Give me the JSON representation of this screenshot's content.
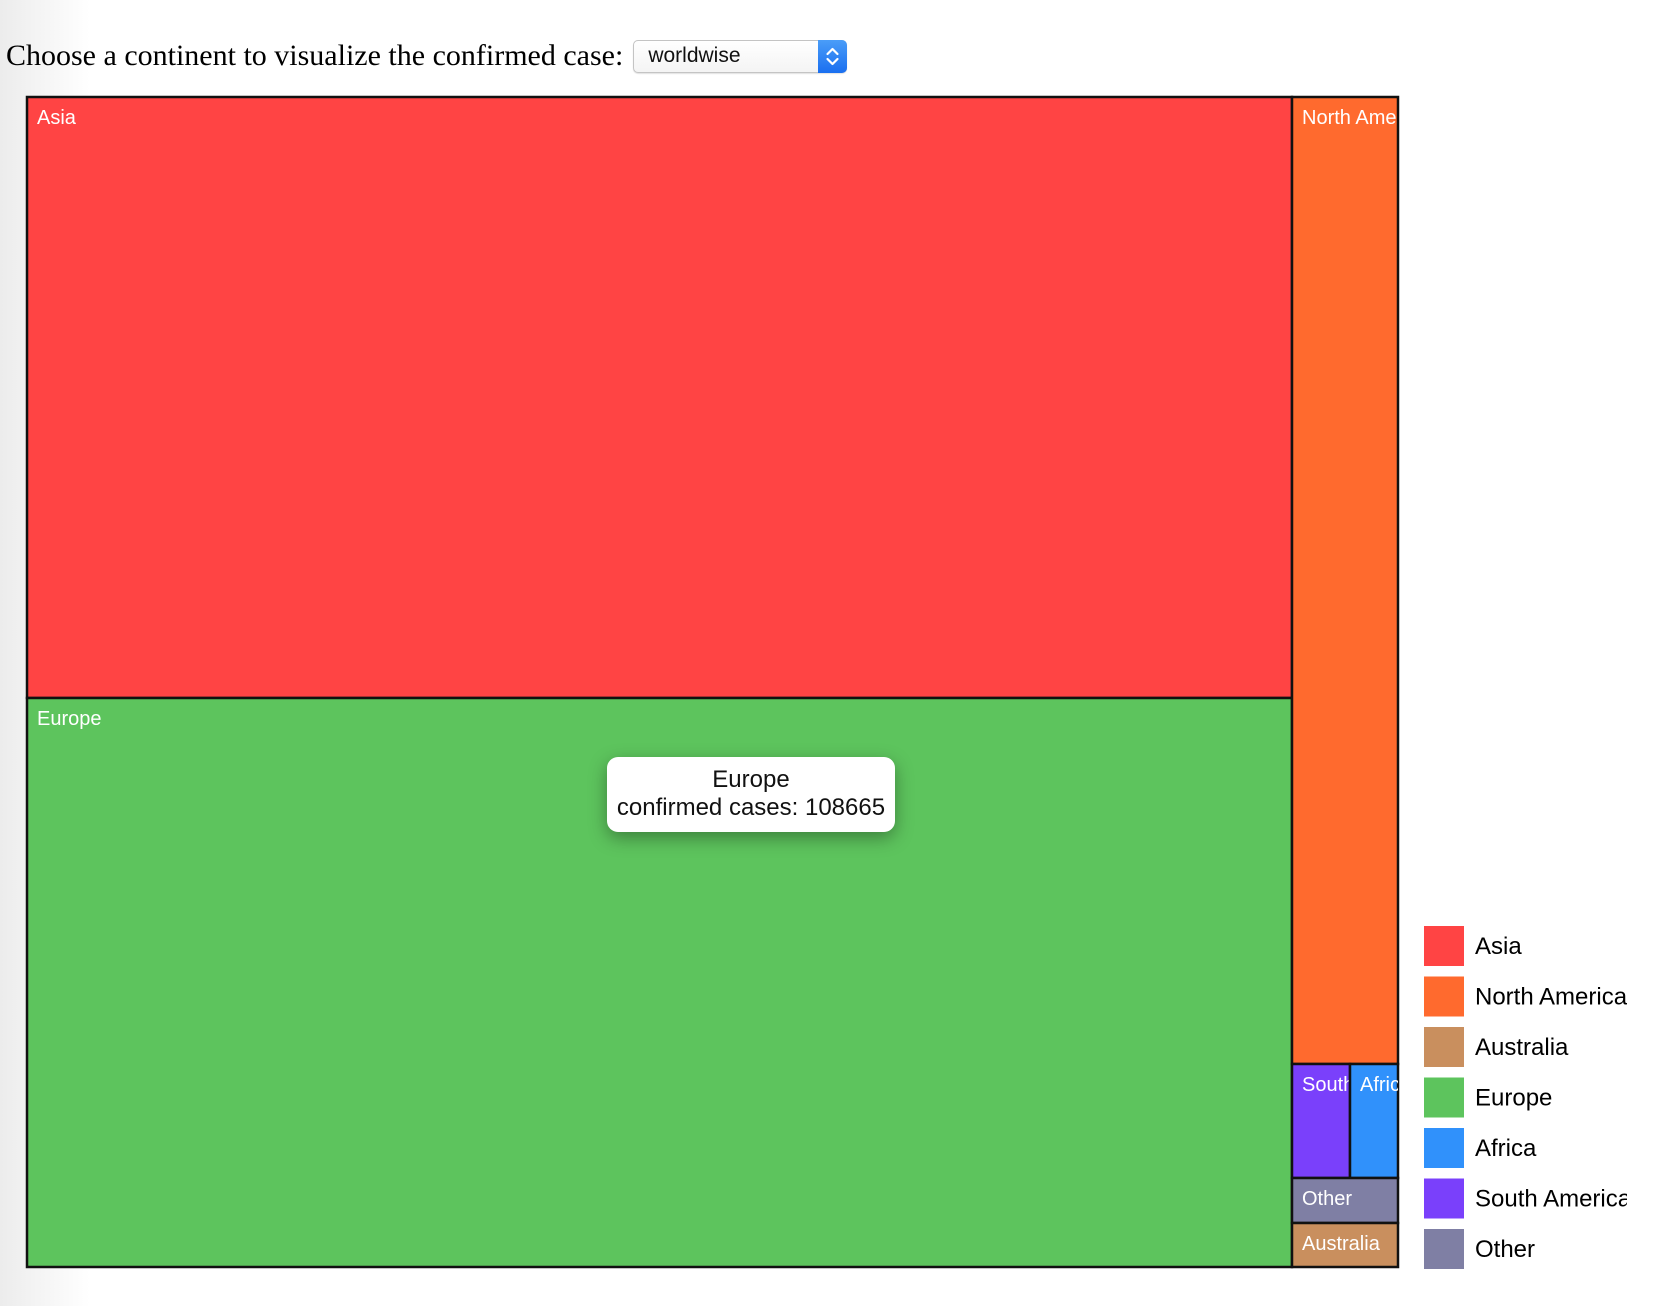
{
  "controls": {
    "prompt": "Choose a continent to visualize the confirmed case:",
    "select": {
      "value": "worldwise",
      "arrows_icon": "up-down-chevron-icon",
      "accent_color": "#2f86f6"
    }
  },
  "chart_data": {
    "type": "treemap",
    "title": "",
    "layout": "squarified",
    "legend_position": "right-bottom",
    "nodes": [
      {
        "name": "Asia",
        "label": "Asia",
        "color": "#ff4444"
      },
      {
        "name": "Europe",
        "label": "Europe",
        "value": 108665,
        "color": "#5dc45d"
      },
      {
        "name": "North America",
        "label": "North Ame",
        "color": "#ff6a2e"
      },
      {
        "name": "South America",
        "label": "South",
        "color": "#7a40fb"
      },
      {
        "name": "Africa",
        "label": "Afric",
        "color": "#3091fb"
      },
      {
        "name": "Other",
        "label": "Other",
        "color": "#7f7fa4"
      },
      {
        "name": "Australia",
        "label": "Australia",
        "color": "#c98f5e"
      }
    ],
    "legend": [
      {
        "name": "Asia",
        "color": "#ff4444"
      },
      {
        "name": "North America",
        "label": "North America",
        "color": "#ff6a2e"
      },
      {
        "name": "Australia",
        "color": "#c98f5e"
      },
      {
        "name": "Europe",
        "color": "#5dc45d"
      },
      {
        "name": "Africa",
        "color": "#3091fb"
      },
      {
        "name": "South America",
        "label": "South America",
        "color": "#7a40fb"
      },
      {
        "name": "Other",
        "color": "#7f7fa4"
      }
    ]
  },
  "tooltip": {
    "name": "Europe",
    "text": "confirmed cases: 108665"
  }
}
